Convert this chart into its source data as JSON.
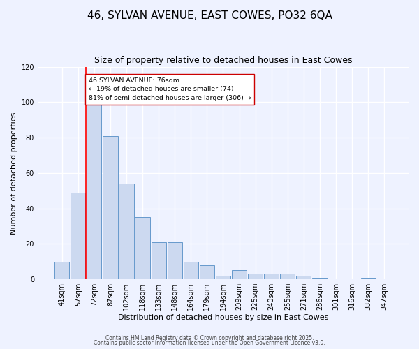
{
  "title": "46, SYLVAN AVENUE, EAST COWES, PO32 6QA",
  "subtitle": "Size of property relative to detached houses in East Cowes",
  "xlabel": "Distribution of detached houses by size in East Cowes",
  "ylabel": "Number of detached properties",
  "bin_labels": [
    "41sqm",
    "57sqm",
    "72sqm",
    "87sqm",
    "102sqm",
    "118sqm",
    "133sqm",
    "148sqm",
    "164sqm",
    "179sqm",
    "194sqm",
    "209sqm",
    "225sqm",
    "240sqm",
    "255sqm",
    "271sqm",
    "286sqm",
    "301sqm",
    "316sqm",
    "332sqm",
    "347sqm"
  ],
  "bar_values": [
    10,
    49,
    100,
    81,
    54,
    35,
    21,
    21,
    10,
    8,
    2,
    5,
    3,
    3,
    3,
    2,
    1,
    0,
    0,
    1,
    0
  ],
  "ylim": [
    0,
    120
  ],
  "yticks": [
    0,
    20,
    40,
    60,
    80,
    100,
    120
  ],
  "bar_color": "#ccd9f0",
  "bar_edgecolor": "#6699cc",
  "annotation_text": "46 SYLVAN AVENUE: 76sqm\n← 19% of detached houses are smaller (74)\n81% of semi-detached houses are larger (306) →",
  "footer_line1": "Contains HM Land Registry data © Crown copyright and database right 2025.",
  "footer_line2": "Contains public sector information licensed under the Open Government Licence v3.0.",
  "bg_color": "#eef2ff",
  "plot_bg_color": "#eef2ff",
  "title_fontsize": 11,
  "subtitle_fontsize": 9,
  "tick_fontsize": 7,
  "ylabel_fontsize": 8,
  "xlabel_fontsize": 8,
  "footer_fontsize": 5.5
}
